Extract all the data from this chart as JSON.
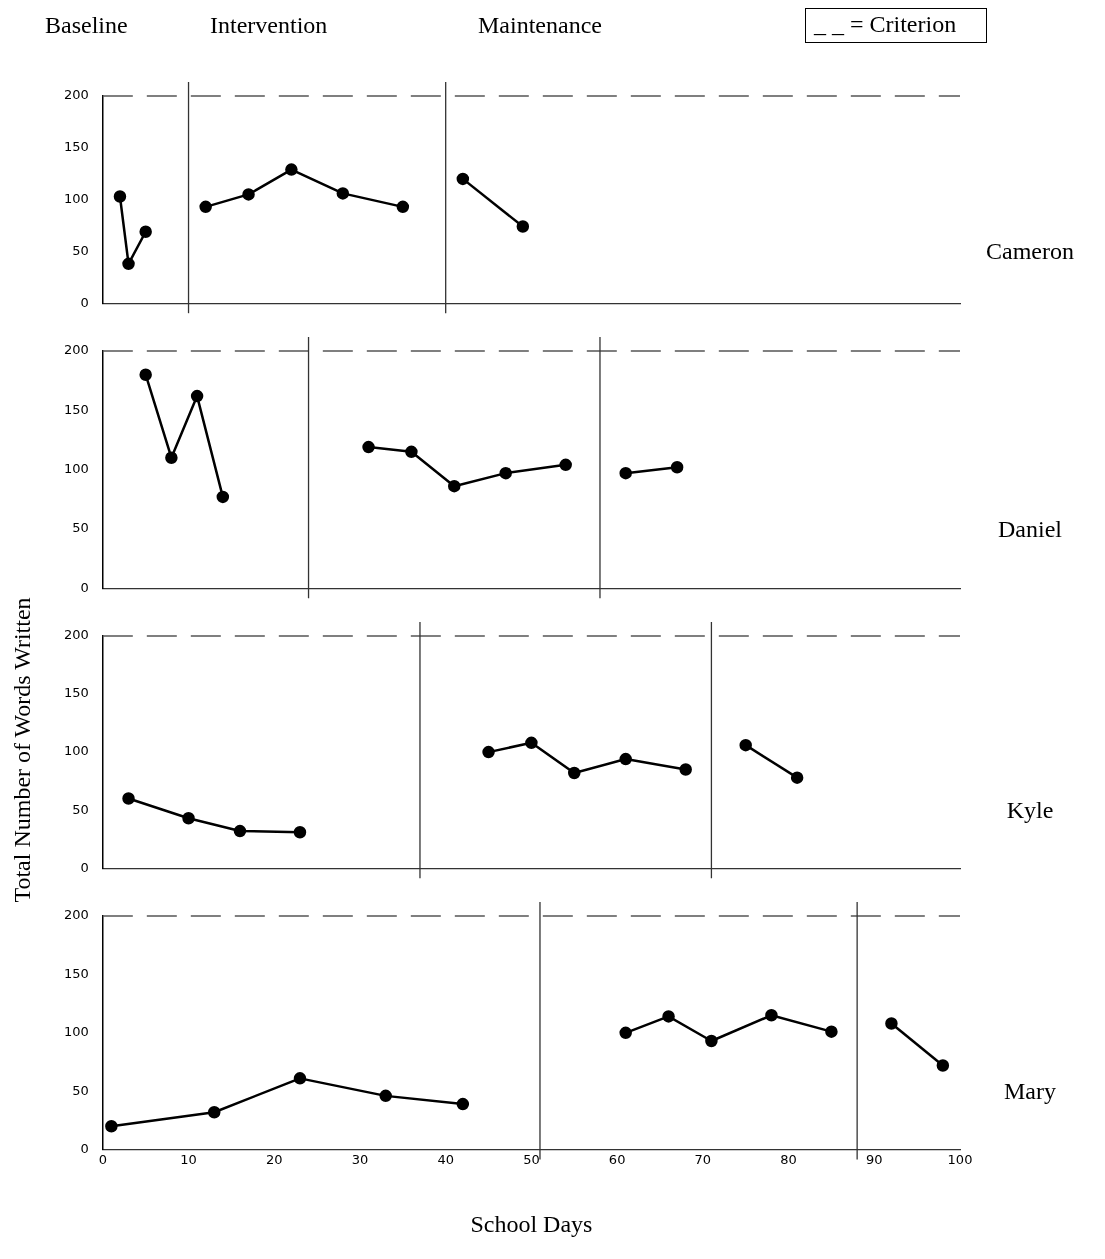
{
  "chart_data": [
    {
      "type": "line",
      "annotations": [
        "Baseline",
        "Intervention",
        "Maintenance",
        "_ _ = Criterion",
        "Cameron"
      ],
      "marker": "circle",
      "line_style": "solid",
      "tick_labels": "y",
      "xlim": [
        0,
        100
      ],
      "xticks": [
        0,
        10,
        20,
        30,
        40,
        50,
        60,
        70,
        80,
        90,
        100
      ],
      "ylim": [
        0,
        200
      ],
      "yticks": [
        0,
        50,
        100,
        150,
        200
      ],
      "series": [
        {
          "color": "#000000",
          "x": [
            2,
            3,
            5
          ],
          "values": [
            103,
            38,
            69
          ]
        },
        {
          "color": "#000000",
          "x": [
            12,
            17,
            22,
            28,
            35
          ],
          "values": [
            93,
            105,
            129,
            106,
            93
          ]
        },
        {
          "color": "#000000",
          "x": [
            42,
            49
          ],
          "values": [
            120,
            74
          ]
        }
      ],
      "ref_lines": [
        {
          "axis": "y",
          "value": 200,
          "line_style": "dashed",
          "color": "#555555"
        },
        {
          "axis": "x",
          "value": 10,
          "color": "#333333"
        },
        {
          "axis": "x",
          "value": 40,
          "color": "#333333"
        }
      ]
    },
    {
      "type": "line",
      "annotations": [
        "Daniel"
      ],
      "marker": "circle",
      "line_style": "solid",
      "tick_labels": "y",
      "xlim": [
        0,
        100
      ],
      "xticks": [
        0,
        10,
        20,
        30,
        40,
        50,
        60,
        70,
        80,
        90,
        100
      ],
      "ylim": [
        0,
        200
      ],
      "yticks": [
        0,
        50,
        100,
        150,
        200
      ],
      "series": [
        {
          "color": "#000000",
          "x": [
            5,
            8,
            11,
            14
          ],
          "values": [
            180,
            110,
            162,
            77
          ]
        },
        {
          "color": "#000000",
          "x": [
            31,
            36,
            41,
            47,
            54
          ],
          "values": [
            119,
            115,
            86,
            97,
            104
          ]
        },
        {
          "color": "#000000",
          "x": [
            61,
            67
          ],
          "values": [
            97,
            102
          ]
        }
      ],
      "ref_lines": [
        {
          "axis": "y",
          "value": 200,
          "line_style": "dashed",
          "color": "#555555"
        },
        {
          "axis": "x",
          "value": 24,
          "color": "#333333"
        },
        {
          "axis": "x",
          "value": 58,
          "color": "#333333"
        }
      ]
    },
    {
      "type": "line",
      "annotations": [
        "Kyle"
      ],
      "ylabel": "Total Number of Words Written",
      "marker": "circle",
      "line_style": "solid",
      "tick_labels": "y",
      "xlim": [
        0,
        100
      ],
      "xticks": [
        0,
        10,
        20,
        30,
        40,
        50,
        60,
        70,
        80,
        90,
        100
      ],
      "ylim": [
        0,
        200
      ],
      "yticks": [
        0,
        50,
        100,
        150,
        200
      ],
      "series": [
        {
          "color": "#000000",
          "x": [
            3,
            10,
            16,
            23
          ],
          "values": [
            60,
            43,
            32,
            31
          ]
        },
        {
          "color": "#000000",
          "x": [
            45,
            50,
            55,
            61,
            68
          ],
          "values": [
            100,
            108,
            82,
            94,
            85
          ]
        },
        {
          "color": "#000000",
          "x": [
            75,
            81
          ],
          "values": [
            106,
            78
          ]
        }
      ],
      "ref_lines": [
        {
          "axis": "y",
          "value": 200,
          "line_style": "dashed",
          "color": "#555555"
        },
        {
          "axis": "x",
          "value": 37,
          "color": "#333333"
        },
        {
          "axis": "x",
          "value": 71,
          "color": "#333333"
        }
      ]
    },
    {
      "type": "line",
      "annotations": [
        "Mary"
      ],
      "xlabel": "School Days",
      "marker": "circle",
      "line_style": "solid",
      "xlim": [
        0,
        100
      ],
      "xticks": [
        0,
        10,
        20,
        30,
        40,
        50,
        60,
        70,
        80,
        90,
        100
      ],
      "ylim": [
        0,
        200
      ],
      "yticks": [
        0,
        50,
        100,
        150,
        200
      ],
      "series": [
        {
          "color": "#000000",
          "x": [
            1,
            13,
            23,
            33,
            42
          ],
          "values": [
            20,
            32,
            61,
            46,
            39
          ]
        },
        {
          "color": "#000000",
          "x": [
            61,
            66,
            71,
            78,
            85
          ],
          "values": [
            100,
            114,
            93,
            115,
            101
          ]
        },
        {
          "color": "#000000",
          "x": [
            92,
            98
          ],
          "values": [
            108,
            72
          ]
        }
      ],
      "ref_lines": [
        {
          "axis": "y",
          "value": 200,
          "line_style": "dashed",
          "color": "#555555"
        },
        {
          "axis": "x",
          "value": 51,
          "color": "#333333"
        },
        {
          "axis": "x",
          "value": 88,
          "color": "#333333"
        }
      ]
    }
  ]
}
